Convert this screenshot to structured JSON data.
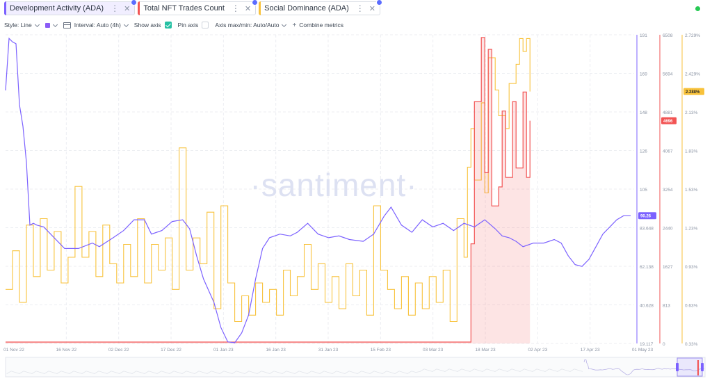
{
  "tabs": [
    {
      "label": "Development Activity (ADA)",
      "color": "#7b61ff",
      "active": true
    },
    {
      "label": "Total NFT Trades Count",
      "color": "#f25454",
      "active": false
    },
    {
      "label": "Social Dominance (ADA)",
      "color": "#f8c23b",
      "active": false
    }
  ],
  "toolbar": {
    "style": "Style: Line",
    "interval": "Interval: Auto (4h)",
    "show_axis": "Show axis",
    "pin_axis": "Pin axis",
    "axis_maxmin": "Axis max/min: Auto/Auto",
    "combine": "Combine metrics",
    "show_axis_checked": true,
    "pin_axis_checked": false
  },
  "watermark": "·santiment·",
  "colors": {
    "dev": "#7b61ff",
    "nft": "#f25454",
    "social": "#f8c23b",
    "accent": "#26c953"
  },
  "chart_data": {
    "type": "line",
    "x_tick_labels": [
      "01 Nov 22",
      "16 Nov 22",
      "02 Dec 22",
      "17 Dec 22",
      "01 Jan 23",
      "16 Jan 23",
      "31 Jan 23",
      "15 Feb 23",
      "03 Mar 23",
      "18 Mar 23",
      "02 Apr 23",
      "17 Apr 23",
      "01 May 23"
    ],
    "x_range": [
      "2022-11-01",
      "2023-05-01"
    ],
    "grid": true,
    "series": [
      {
        "name": "Development Activity (ADA)",
        "axis_ticks": [
          "191",
          "169",
          "148",
          "126",
          "105",
          "83.648",
          "62.138",
          "40.628",
          "19.117"
        ],
        "y_range": [
          19.117,
          191
        ],
        "last_value_label": "90.26",
        "points": [
          [
            "2022-11-01",
            160
          ],
          [
            "2022-11-02",
            189
          ],
          [
            "2022-11-03",
            187
          ],
          [
            "2022-11-04",
            186
          ],
          [
            "2022-11-05",
            152
          ],
          [
            "2022-11-06",
            140
          ],
          [
            "2022-11-07",
            120
          ],
          [
            "2022-11-08",
            85
          ],
          [
            "2022-11-09",
            86
          ],
          [
            "2022-11-10",
            85
          ],
          [
            "2022-11-12",
            84
          ],
          [
            "2022-11-15",
            78
          ],
          [
            "2022-11-18",
            72
          ],
          [
            "2022-11-22",
            72
          ],
          [
            "2022-11-26",
            75
          ],
          [
            "2022-11-28",
            73
          ],
          [
            "2022-12-02",
            78
          ],
          [
            "2022-12-05",
            82
          ],
          [
            "2022-12-08",
            88
          ],
          [
            "2022-12-11",
            88
          ],
          [
            "2022-12-13",
            80
          ],
          [
            "2022-12-16",
            82
          ],
          [
            "2022-12-19",
            87
          ],
          [
            "2022-12-22",
            88
          ],
          [
            "2022-12-24",
            83
          ],
          [
            "2022-12-26",
            68
          ],
          [
            "2022-12-28",
            55
          ],
          [
            "2022-12-31",
            42
          ],
          [
            "2023-01-02",
            28
          ],
          [
            "2023-01-04",
            20
          ],
          [
            "2023-01-06",
            19.5
          ],
          [
            "2023-01-08",
            25
          ],
          [
            "2023-01-10",
            35
          ],
          [
            "2023-01-12",
            55
          ],
          [
            "2023-01-14",
            72
          ],
          [
            "2023-01-16",
            78
          ],
          [
            "2023-01-19",
            80
          ],
          [
            "2023-01-22",
            79
          ],
          [
            "2023-01-24",
            81
          ],
          [
            "2023-01-27",
            86
          ],
          [
            "2023-01-30",
            80
          ],
          [
            "2023-02-02",
            78
          ],
          [
            "2023-02-05",
            79
          ],
          [
            "2023-02-08",
            77
          ],
          [
            "2023-02-12",
            76
          ],
          [
            "2023-02-15",
            80
          ],
          [
            "2023-02-18",
            90
          ],
          [
            "2023-02-20",
            95
          ],
          [
            "2023-02-23",
            85
          ],
          [
            "2023-02-26",
            81
          ],
          [
            "2023-03-01",
            88
          ],
          [
            "2023-03-04",
            84
          ],
          [
            "2023-03-07",
            86
          ],
          [
            "2023-03-10",
            82
          ],
          [
            "2023-03-13",
            86
          ],
          [
            "2023-03-16",
            84
          ],
          [
            "2023-03-19",
            88
          ],
          [
            "2023-03-22",
            83
          ],
          [
            "2023-03-24",
            79
          ],
          [
            "2023-03-26",
            78
          ],
          [
            "2023-03-28",
            76
          ],
          [
            "2023-03-30",
            73
          ],
          [
            "2023-04-02",
            75
          ],
          [
            "2023-04-05",
            75
          ],
          [
            "2023-04-08",
            77
          ],
          [
            "2023-04-10",
            75
          ],
          [
            "2023-04-12",
            68
          ],
          [
            "2023-04-14",
            63
          ],
          [
            "2023-04-16",
            62
          ],
          [
            "2023-04-18",
            66
          ],
          [
            "2023-04-20",
            73
          ],
          [
            "2023-04-22",
            80
          ],
          [
            "2023-04-24",
            84
          ],
          [
            "2023-04-26",
            88
          ],
          [
            "2023-04-28",
            90.26
          ],
          [
            "2023-04-30",
            90.26
          ]
        ]
      },
      {
        "name": "Total NFT Trades Count",
        "axis_ticks": [
          "6508",
          "5694",
          "4881",
          "4067",
          "3254",
          "2440",
          "1627",
          "813",
          "0"
        ],
        "y_range": [
          0,
          6508
        ],
        "last_value_label": "4696",
        "points": [
          [
            "2022-11-01",
            30
          ],
          [
            "2023-03-13",
            30
          ],
          [
            "2023-03-15",
            2100
          ],
          [
            "2023-03-16",
            5100
          ],
          [
            "2023-03-18",
            6450
          ],
          [
            "2023-03-19",
            3600
          ],
          [
            "2023-03-20",
            6200
          ],
          [
            "2023-03-21",
            2900
          ],
          [
            "2023-03-23",
            3300
          ],
          [
            "2023-03-24",
            4900
          ],
          [
            "2023-03-25",
            3500
          ],
          [
            "2023-03-27",
            5100
          ],
          [
            "2023-03-28",
            3700
          ],
          [
            "2023-03-30",
            5300
          ],
          [
            "2023-03-31",
            3500
          ],
          [
            "2023-04-01",
            4696
          ]
        ]
      },
      {
        "name": "Social Dominance (ADA)",
        "axis_ticks": [
          "2.729%",
          "2.429%",
          "2.13%",
          "1.83%",
          "1.53%",
          "1.23%",
          "0.93%",
          "0.63%",
          "0.33%"
        ],
        "y_range": [
          0.33,
          2.729
        ],
        "last_value_label": "2.288%",
        "points": [
          [
            "2022-11-01",
            0.75
          ],
          [
            "2022-11-03",
            1.05
          ],
          [
            "2022-11-05",
            0.65
          ],
          [
            "2022-11-07",
            1.25
          ],
          [
            "2022-11-09",
            0.85
          ],
          [
            "2022-11-11",
            1.3
          ],
          [
            "2022-11-13",
            0.9
          ],
          [
            "2022-11-15",
            1.2
          ],
          [
            "2022-11-17",
            0.8
          ],
          [
            "2022-11-19",
            1.0
          ],
          [
            "2022-11-21",
            1.55
          ],
          [
            "2022-11-23",
            1.0
          ],
          [
            "2022-11-25",
            1.2
          ],
          [
            "2022-11-27",
            0.85
          ],
          [
            "2022-11-29",
            1.25
          ],
          [
            "2022-12-01",
            0.95
          ],
          [
            "2022-12-03",
            0.8
          ],
          [
            "2022-12-05",
            1.1
          ],
          [
            "2022-12-07",
            0.85
          ],
          [
            "2022-12-09",
            1.3
          ],
          [
            "2022-12-11",
            0.8
          ],
          [
            "2022-12-13",
            1.1
          ],
          [
            "2022-12-15",
            0.9
          ],
          [
            "2022-12-17",
            1.15
          ],
          [
            "2022-12-19",
            0.75
          ],
          [
            "2022-12-21",
            1.85
          ],
          [
            "2022-12-23",
            0.9
          ],
          [
            "2022-12-25",
            1.15
          ],
          [
            "2022-12-27",
            0.95
          ],
          [
            "2022-12-29",
            1.35
          ],
          [
            "2022-12-31",
            0.6
          ],
          [
            "2023-01-02",
            1.4
          ],
          [
            "2023-01-04",
            0.8
          ],
          [
            "2023-01-06",
            0.5
          ],
          [
            "2023-01-08",
            0.7
          ],
          [
            "2023-01-10",
            0.55
          ],
          [
            "2023-01-12",
            0.8
          ],
          [
            "2023-01-14",
            0.65
          ],
          [
            "2023-01-16",
            0.75
          ],
          [
            "2023-01-18",
            0.55
          ],
          [
            "2023-01-20",
            0.9
          ],
          [
            "2023-01-22",
            0.7
          ],
          [
            "2023-01-24",
            0.85
          ],
          [
            "2023-01-26",
            1.1
          ],
          [
            "2023-01-28",
            0.75
          ],
          [
            "2023-01-30",
            0.95
          ],
          [
            "2023-02-01",
            0.65
          ],
          [
            "2023-02-03",
            0.85
          ],
          [
            "2023-02-05",
            0.6
          ],
          [
            "2023-02-07",
            0.95
          ],
          [
            "2023-02-09",
            0.7
          ],
          [
            "2023-02-11",
            0.9
          ],
          [
            "2023-02-13",
            0.55
          ],
          [
            "2023-02-15",
            1.4
          ],
          [
            "2023-02-17",
            0.9
          ],
          [
            "2023-02-19",
            0.75
          ],
          [
            "2023-02-21",
            0.6
          ],
          [
            "2023-02-23",
            0.85
          ],
          [
            "2023-02-25",
            0.55
          ],
          [
            "2023-02-27",
            0.8
          ],
          [
            "2023-03-01",
            0.6
          ],
          [
            "2023-03-03",
            0.85
          ],
          [
            "2023-03-05",
            0.65
          ],
          [
            "2023-03-07",
            0.9
          ],
          [
            "2023-03-09",
            0.5
          ],
          [
            "2023-03-11",
            1.3
          ],
          [
            "2023-03-13",
            1.0
          ],
          [
            "2023-03-14",
            1.7
          ],
          [
            "2023-03-15",
            2.0
          ],
          [
            "2023-03-16",
            1.6
          ],
          [
            "2023-03-18",
            2.2
          ],
          [
            "2023-03-19",
            1.5
          ],
          [
            "2023-03-20",
            2.55
          ],
          [
            "2023-03-22",
            2.3
          ],
          [
            "2023-03-23",
            2.1
          ],
          [
            "2023-03-25",
            2.0
          ],
          [
            "2023-03-26",
            2.35
          ],
          [
            "2023-03-28",
            2.5
          ],
          [
            "2023-03-29",
            2.7
          ],
          [
            "2023-03-30",
            2.6
          ],
          [
            "2023-03-31",
            2.7
          ],
          [
            "2023-04-01",
            2.288
          ]
        ]
      }
    ]
  }
}
